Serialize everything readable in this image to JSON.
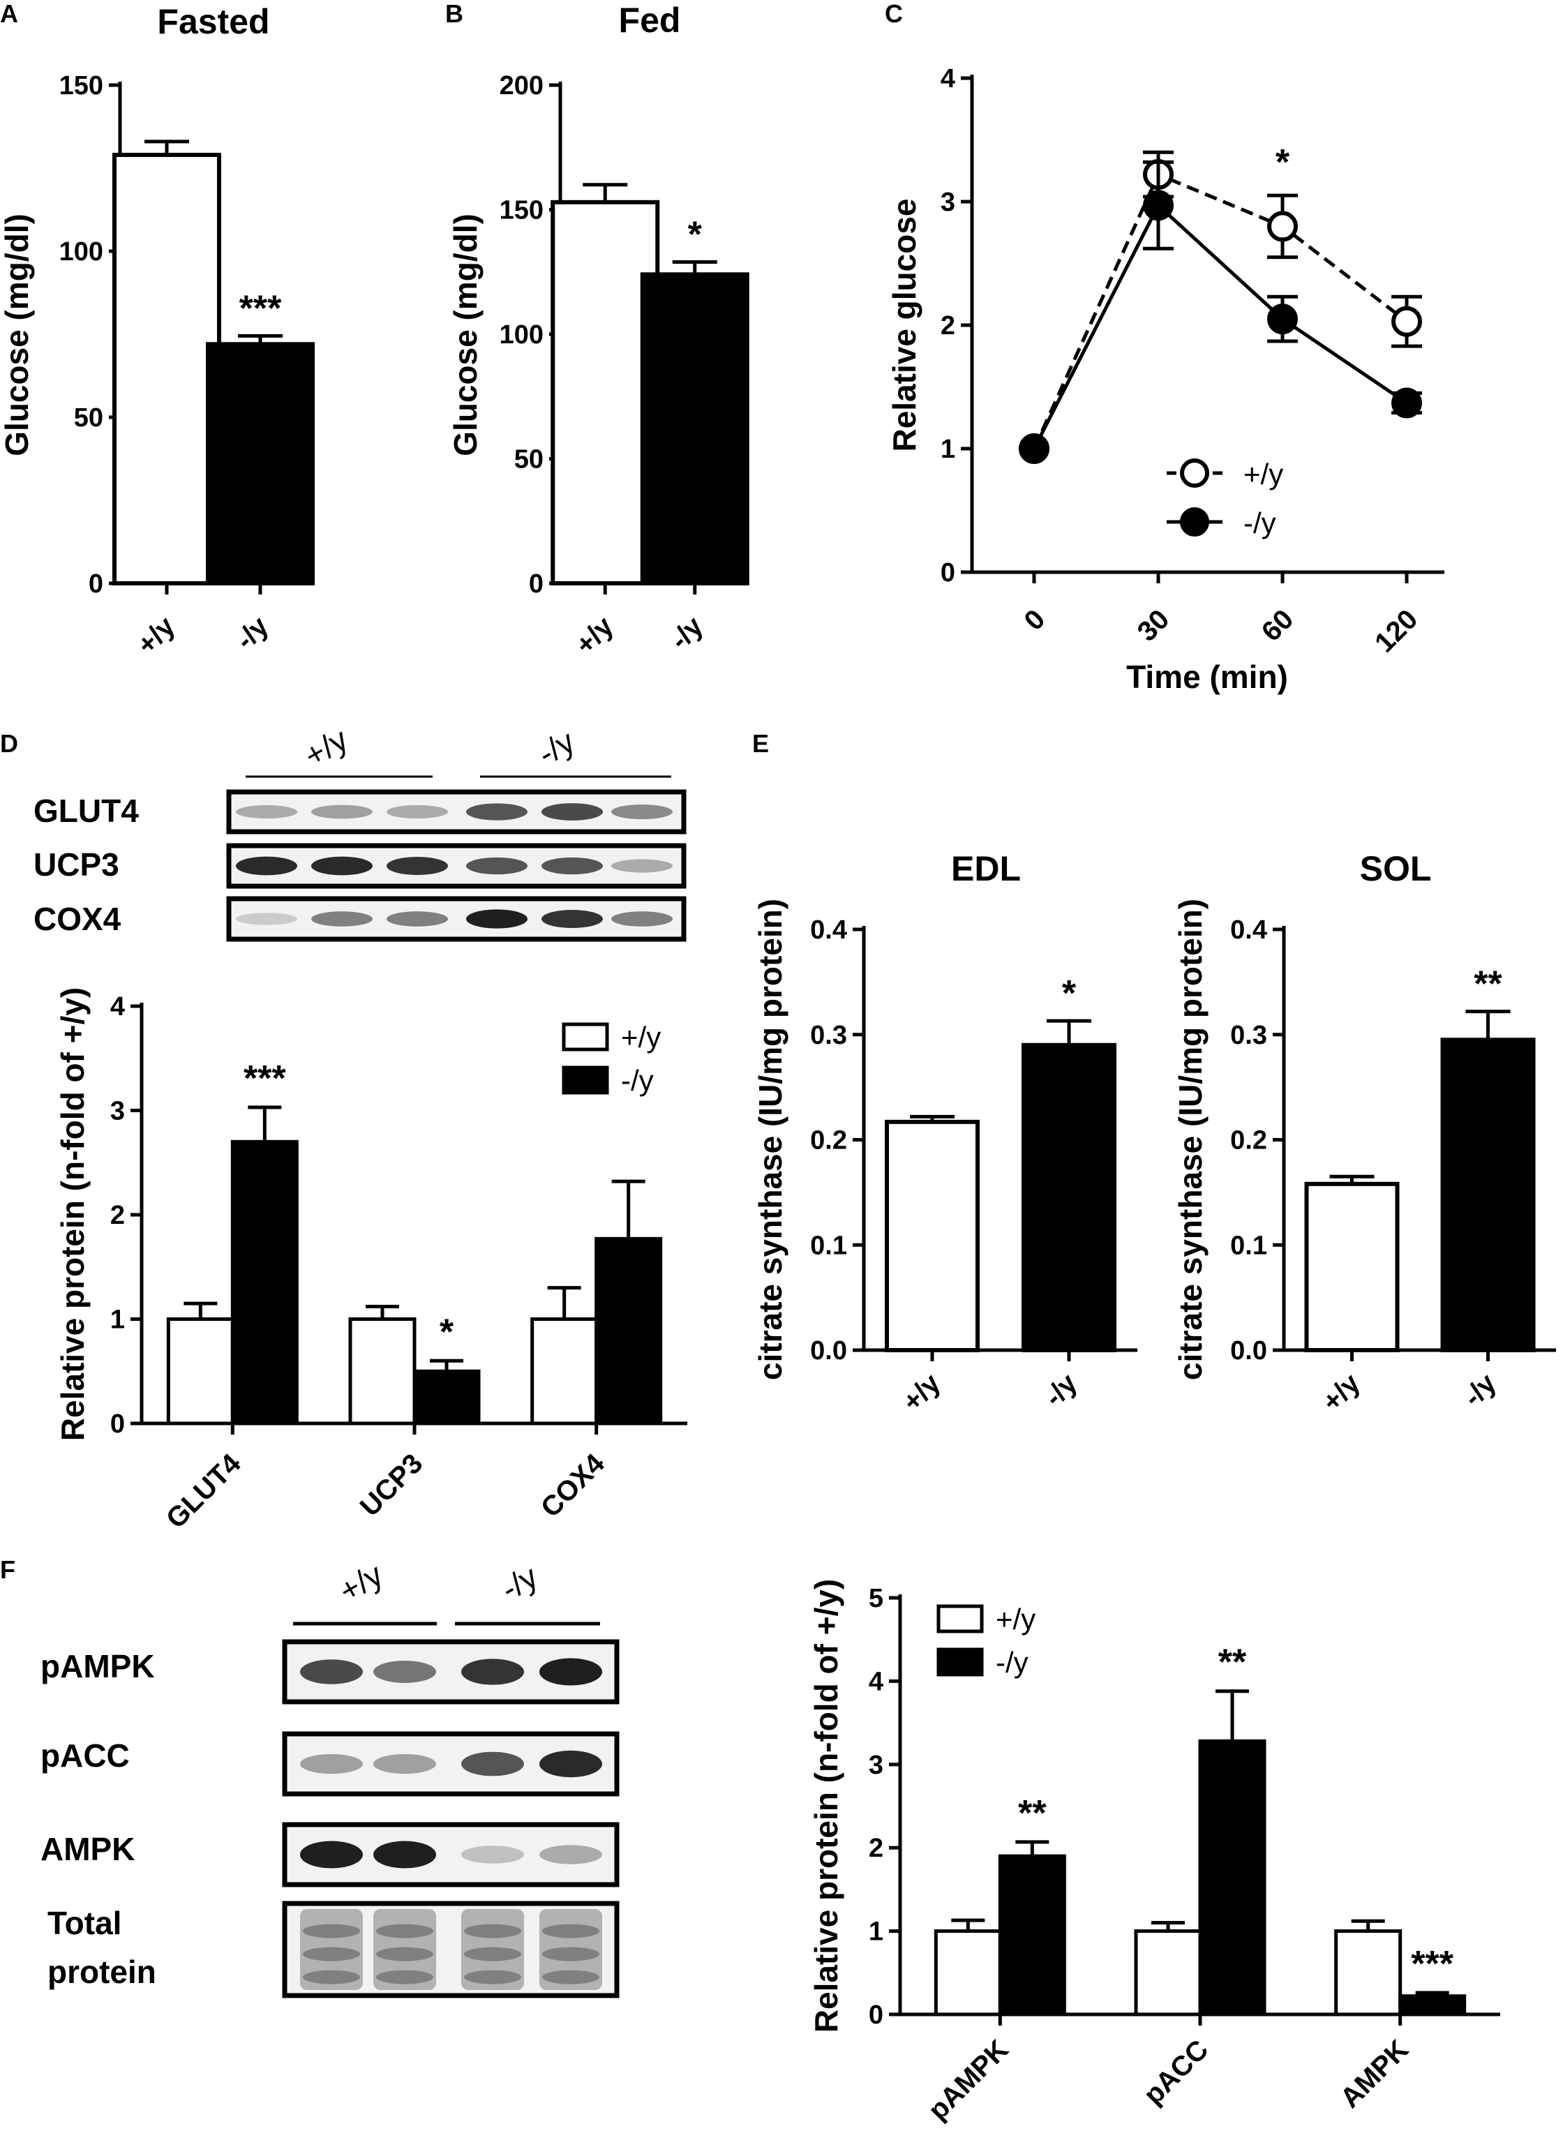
{
  "figure": {
    "panel_labels": [
      "A",
      "B",
      "C",
      "D",
      "E",
      "F"
    ],
    "genotypes": [
      "+/y",
      "-/y"
    ],
    "colors": {
      "wt": "#ffffff",
      "ko": "#000000",
      "stroke": "#000000"
    }
  },
  "chart_data": [
    {
      "id": "A",
      "type": "bar",
      "title": "Fasted",
      "ylabel": "Glucose (mg/dl)",
      "categories": [
        "+/y",
        "-/y"
      ],
      "values": [
        129,
        72
      ],
      "errors": [
        4,
        2.5
      ],
      "ylim": [
        0,
        150
      ],
      "yticks": [
        0,
        50,
        100,
        150
      ],
      "annotations": [
        "",
        "***"
      ]
    },
    {
      "id": "B",
      "type": "bar",
      "title": "Fed",
      "ylabel": "Glucose (mg/dl)",
      "categories": [
        "+/y",
        "-/y"
      ],
      "values": [
        153,
        124
      ],
      "errors": [
        7,
        5
      ],
      "ylim": [
        0,
        200
      ],
      "yticks": [
        0,
        50,
        100,
        150,
        200
      ],
      "annotations": [
        "",
        "*"
      ]
    },
    {
      "id": "C",
      "type": "line",
      "ylabel": "Relative glucose",
      "xlabel": "Time (min)",
      "x": [
        "0",
        "30",
        "60",
        "120"
      ],
      "ylim": [
        0,
        4
      ],
      "yticks": [
        0,
        1,
        2,
        3,
        4
      ],
      "series": [
        {
          "name": "+/y",
          "values": [
            1.0,
            3.22,
            2.8,
            2.03
          ],
          "errors": [
            0,
            0.18,
            0.25,
            0.2
          ],
          "style": "dashed-open"
        },
        {
          "name": "-/y",
          "values": [
            1.0,
            2.97,
            2.05,
            1.37
          ],
          "errors": [
            0,
            0.35,
            0.18,
            0.08
          ],
          "style": "solid-filled"
        }
      ],
      "annotations": [
        {
          "x": "60",
          "text": "*"
        }
      ]
    },
    {
      "id": "D",
      "type": "bar",
      "ylabel": "Relative protein (n-fold of +/y)",
      "categories": [
        "GLUT4",
        "UCP3",
        "COX4"
      ],
      "ylim": [
        0,
        4
      ],
      "yticks": [
        0,
        1,
        2,
        3,
        4
      ],
      "series": [
        {
          "name": "+/y",
          "values": [
            1.0,
            1.0,
            1.0
          ],
          "errors": [
            0.15,
            0.12,
            0.3
          ]
        },
        {
          "name": "-/y",
          "values": [
            2.7,
            0.5,
            1.77
          ],
          "errors": [
            0.33,
            0.1,
            0.55
          ]
        }
      ],
      "annotations": [
        "***",
        "*",
        ""
      ]
    },
    {
      "id": "E1",
      "type": "bar",
      "title": "EDL",
      "ylabel": "citrate synthase (IU/mg protein)",
      "categories": [
        "+/y",
        "-/y"
      ],
      "values": [
        0.217,
        0.29
      ],
      "errors": [
        0.005,
        0.023
      ],
      "ylim": [
        0,
        0.4
      ],
      "yticks": [
        "0.0",
        "0.1",
        "0.2",
        "0.3",
        "0.4"
      ],
      "annotations": [
        "",
        "*"
      ]
    },
    {
      "id": "E2",
      "type": "bar",
      "title": "SOL",
      "ylabel": "citrate synthase (IU/mg protein)",
      "categories": [
        "+/y",
        "-/y"
      ],
      "values": [
        0.158,
        0.295
      ],
      "errors": [
        0.007,
        0.027
      ],
      "ylim": [
        0,
        0.4
      ],
      "yticks": [
        "0.0",
        "0.1",
        "0.2",
        "0.3",
        "0.4"
      ],
      "annotations": [
        "",
        "**"
      ]
    },
    {
      "id": "F",
      "type": "bar",
      "ylabel": "Relative protein (n-fold of +/y)",
      "categories": [
        "pAMPK",
        "pACC",
        "AMPK"
      ],
      "ylim": [
        0,
        5
      ],
      "yticks": [
        0,
        1,
        2,
        3,
        4,
        5
      ],
      "series": [
        {
          "name": "+/y",
          "values": [
            1.0,
            1.0,
            1.0
          ],
          "errors": [
            0.13,
            0.1,
            0.12
          ]
        },
        {
          "name": "-/y",
          "values": [
            1.9,
            3.28,
            0.22
          ],
          "errors": [
            0.17,
            0.6,
            0.04
          ]
        }
      ],
      "annotations": [
        "**",
        "**",
        "***"
      ]
    }
  ],
  "blots": {
    "D": {
      "lanes": 6,
      "rows": [
        "GLUT4",
        "UCP3",
        "COX4"
      ],
      "intensity": [
        [
          0.3,
          0.35,
          0.3,
          0.7,
          0.75,
          0.45
        ],
        [
          0.9,
          0.9,
          0.85,
          0.7,
          0.7,
          0.3
        ],
        [
          0.15,
          0.5,
          0.5,
          0.95,
          0.85,
          0.5
        ]
      ]
    },
    "F": {
      "lanes": 4,
      "rows": [
        "pAMPK",
        "pACC",
        "AMPK",
        "Total protein"
      ],
      "intensity": [
        [
          0.75,
          0.55,
          0.85,
          0.95
        ],
        [
          0.35,
          0.35,
          0.7,
          0.9
        ],
        [
          0.95,
          0.95,
          0.2,
          0.3
        ],
        [
          0.45,
          0.45,
          0.45,
          0.45
        ]
      ]
    }
  }
}
